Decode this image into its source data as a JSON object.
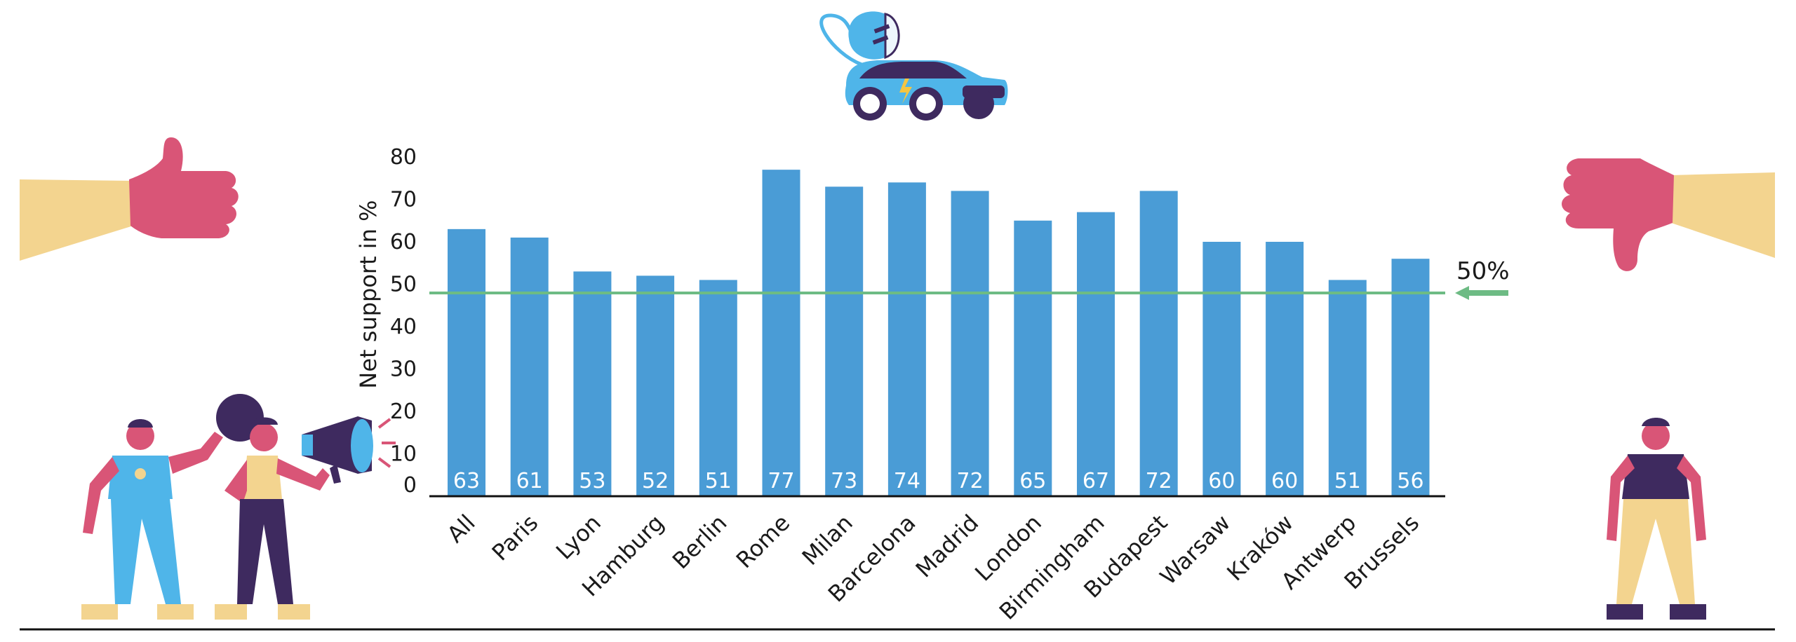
{
  "colors": {
    "bar": "#4a9cd6",
    "reference": "#6dbb84",
    "baseline": "#111111",
    "hand": "#d95577",
    "sleeve": "#f3d48f",
    "car": "#4fb5e9",
    "navy": "#3e2a5f"
  },
  "icons": [
    "electric-car-icon",
    "thumbs-up-icon",
    "thumbs-down-icon",
    "person-icon",
    "megaphone-icon"
  ],
  "chart_data": {
    "type": "bar",
    "ylabel": "Net support in %",
    "ylim": [
      0,
      80
    ],
    "yticks": [
      0,
      10,
      20,
      30,
      40,
      50,
      60,
      70,
      80
    ],
    "categories": [
      "All",
      "Paris",
      "Lyon",
      "Hamburg",
      "Berlin",
      "Rome",
      "Milan",
      "Barcelona",
      "Madrid",
      "London",
      "Birmingham",
      "Budapest",
      "Warsaw",
      "Kraków",
      "Antwerp",
      "Brussels"
    ],
    "values": [
      63,
      61,
      53,
      52,
      51,
      77,
      73,
      74,
      72,
      65,
      67,
      72,
      60,
      60,
      51,
      56
    ],
    "value_labels": [
      "63",
      "61",
      "53",
      "52",
      "51",
      "77",
      "73",
      "74",
      "72",
      "65",
      "67",
      "72",
      "60",
      "60",
      "51",
      "56"
    ],
    "reference_line": {
      "label": "50%",
      "value": 50
    },
    "grid": false
  }
}
